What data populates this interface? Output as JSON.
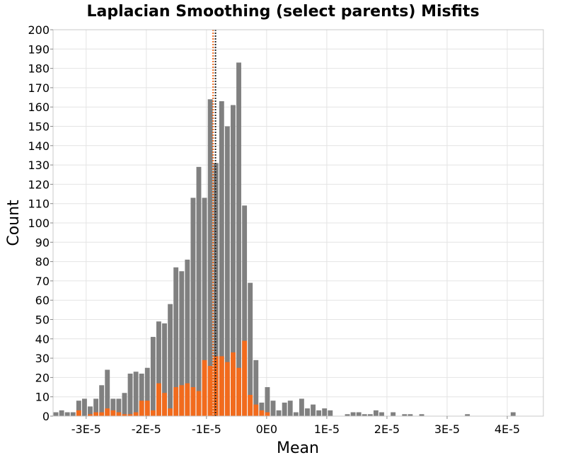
{
  "chart_data": {
    "type": "bar",
    "title": "Laplacian Smoothing (select parents) Misfits",
    "xlabel": "Mean",
    "ylabel": "Count",
    "xlim": [
      -3.55e-05,
      4.6e-05
    ],
    "ylim": [
      0,
      200
    ],
    "x_ticks": [
      -3e-05,
      -2e-05,
      -1e-05,
      0,
      1e-05,
      2e-05,
      3e-05,
      4e-05
    ],
    "x_tick_labels": [
      "-3E-5",
      "-2E-5",
      "-1E-5",
      "0E0",
      "1E-5",
      "2E-5",
      "3E-5",
      "4E-5"
    ],
    "y_ticks": [
      0,
      10,
      20,
      30,
      40,
      50,
      60,
      70,
      80,
      90,
      100,
      110,
      120,
      130,
      140,
      150,
      160,
      170,
      180,
      190,
      200
    ],
    "grid": true,
    "bin_start": -3.55e-05,
    "bin_width": 9.5e-07,
    "colors": {
      "all": "#808080",
      "selected": "#f26b1d",
      "frame": "#c8c8c8"
    },
    "series": [
      {
        "values": [
          2,
          3,
          2,
          2,
          8,
          9,
          5,
          9,
          16,
          24,
          9,
          9,
          12,
          22,
          23,
          22,
          25,
          41,
          49,
          48,
          58,
          77,
          75,
          81,
          113,
          129,
          113,
          164,
          131,
          163,
          150,
          161,
          183,
          109,
          69,
          29,
          7,
          15,
          8,
          3,
          7,
          8,
          2,
          9,
          4,
          6,
          3,
          4,
          3,
          0,
          0,
          1,
          2,
          2,
          1,
          1,
          3,
          2,
          0,
          2,
          0,
          1,
          1,
          0,
          1,
          0,
          0,
          0,
          0,
          0,
          0,
          0,
          1,
          0,
          0,
          0,
          0,
          0,
          0,
          0,
          2
        ]
      },
      {
        "values": [
          0,
          0,
          0,
          0,
          3,
          0,
          1,
          2,
          2,
          4,
          3,
          2,
          1,
          1,
          2,
          8,
          8,
          3,
          17,
          12,
          4,
          15,
          16,
          17,
          15,
          13,
          29,
          26,
          31,
          31,
          28,
          33,
          25,
          39,
          11,
          6,
          3,
          2,
          0,
          0,
          0,
          0,
          0,
          0,
          0,
          0,
          0,
          0,
          0,
          0,
          0,
          0,
          0,
          0,
          0,
          0,
          0,
          0,
          0,
          0,
          0,
          0,
          0,
          0,
          0,
          0,
          0,
          0,
          0,
          0,
          0,
          0,
          0,
          0,
          0,
          0,
          0,
          0,
          0,
          0,
          0
        ]
      }
    ],
    "vlines": [
      {
        "x": -8.9e-06,
        "color": "#f26b1d",
        "style": "dotted"
      },
      {
        "x": -8.5e-06,
        "color": "#222222",
        "style": "dotted"
      }
    ]
  }
}
